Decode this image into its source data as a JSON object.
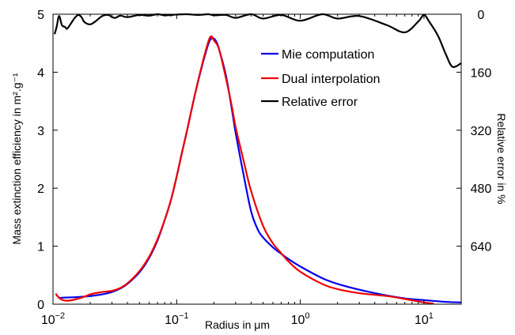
{
  "chart_data": {
    "type": "line",
    "title": "",
    "xlabel": "Radius in μm",
    "ylabel": "Mass extinction efficiency in m².g⁻¹",
    "y2label": "Relative error in %",
    "xscale": "log",
    "xlim": [
      0.01,
      20
    ],
    "ylim": [
      0,
      5
    ],
    "y2lim": [
      0,
      800
    ],
    "y2_inverted": true,
    "grid": false,
    "legend_position": "top-right",
    "x_ticks": [
      {
        "value": 0.01,
        "base": "10",
        "exp": "−2"
      },
      {
        "value": 0.1,
        "base": "10",
        "exp": "−1"
      },
      {
        "value": 1,
        "base": "10",
        "exp": "0"
      },
      {
        "value": 10,
        "base": "10",
        "exp": "1"
      }
    ],
    "y_ticks": [
      "0",
      "1",
      "2",
      "3",
      "4",
      "5"
    ],
    "y2_ticks": [
      "0",
      "160",
      "320",
      "480",
      "640"
    ],
    "series": [
      {
        "name": "Mie computation",
        "color": "#0000ee",
        "axis": "left",
        "x": [
          0.011,
          0.015,
          0.02,
          0.025,
          0.03,
          0.035,
          0.04,
          0.05,
          0.06,
          0.07,
          0.08,
          0.09,
          0.1,
          0.11,
          0.12,
          0.14,
          0.16,
          0.18,
          0.19,
          0.2,
          0.21,
          0.22,
          0.25,
          0.28,
          0.3,
          0.35,
          0.4,
          0.45,
          0.5,
          0.6,
          0.7,
          0.8,
          1.0,
          1.5,
          2.0,
          3.0,
          5.0,
          7.0,
          10.0,
          15.0,
          20.0
        ],
        "y": [
          0.11,
          0.12,
          0.14,
          0.17,
          0.21,
          0.27,
          0.35,
          0.55,
          0.8,
          1.1,
          1.45,
          1.8,
          2.2,
          2.6,
          2.95,
          3.6,
          4.1,
          4.48,
          4.58,
          4.58,
          4.52,
          4.4,
          3.95,
          3.35,
          2.95,
          2.2,
          1.6,
          1.3,
          1.15,
          0.98,
          0.87,
          0.78,
          0.65,
          0.45,
          0.35,
          0.25,
          0.15,
          0.1,
          0.07,
          0.04,
          0.03
        ]
      },
      {
        "name": "Dual interpolation",
        "color": "#ee0000",
        "axis": "left",
        "x": [
          0.0105,
          0.0115,
          0.013,
          0.015,
          0.018,
          0.02,
          0.025,
          0.03,
          0.035,
          0.04,
          0.05,
          0.06,
          0.07,
          0.08,
          0.09,
          0.1,
          0.11,
          0.12,
          0.14,
          0.16,
          0.18,
          0.19,
          0.2,
          0.22,
          0.25,
          0.28,
          0.3,
          0.35,
          0.4,
          0.5,
          0.6,
          0.7,
          0.8,
          1.0,
          1.5,
          2.0,
          3.0,
          5.0,
          7.0,
          10.0,
          12.0
        ],
        "y": [
          0.18,
          0.09,
          0.06,
          0.08,
          0.13,
          0.17,
          0.21,
          0.23,
          0.28,
          0.36,
          0.57,
          0.82,
          1.12,
          1.45,
          1.8,
          2.2,
          2.6,
          2.95,
          3.6,
          4.12,
          4.52,
          4.62,
          4.55,
          4.4,
          3.9,
          3.4,
          3.05,
          2.45,
          1.95,
          1.35,
          1.05,
          0.88,
          0.74,
          0.56,
          0.35,
          0.26,
          0.19,
          0.14,
          0.09,
          0.03,
          0.01
        ]
      },
      {
        "name": "Relative error",
        "color": "#000000",
        "axis": "right",
        "x": [
          0.0103,
          0.0107,
          0.0112,
          0.0118,
          0.0125,
          0.013,
          0.014,
          0.015,
          0.016,
          0.017,
          0.018,
          0.02,
          0.022,
          0.025,
          0.028,
          0.03,
          0.032,
          0.035,
          0.04,
          0.05,
          0.06,
          0.07,
          0.08,
          0.1,
          0.12,
          0.15,
          0.18,
          0.2,
          0.25,
          0.3,
          0.4,
          0.5,
          0.7,
          1.0,
          1.5,
          2.0,
          3.0,
          5.0,
          7.0,
          9.0,
          10.0,
          11.0,
          13.0,
          15.0,
          17.0,
          20.0
        ],
        "y": [
          55,
          35,
          5,
          30,
          35,
          40,
          25,
          10,
          2,
          8,
          22,
          28,
          20,
          5,
          2,
          8,
          10,
          4,
          8,
          2,
          4,
          0,
          3,
          1,
          0,
          2,
          0,
          3,
          2,
          10,
          0,
          12,
          2,
          18,
          0,
          12,
          5,
          30,
          50,
          20,
          2,
          20,
          60,
          110,
          145,
          135
        ]
      }
    ]
  }
}
